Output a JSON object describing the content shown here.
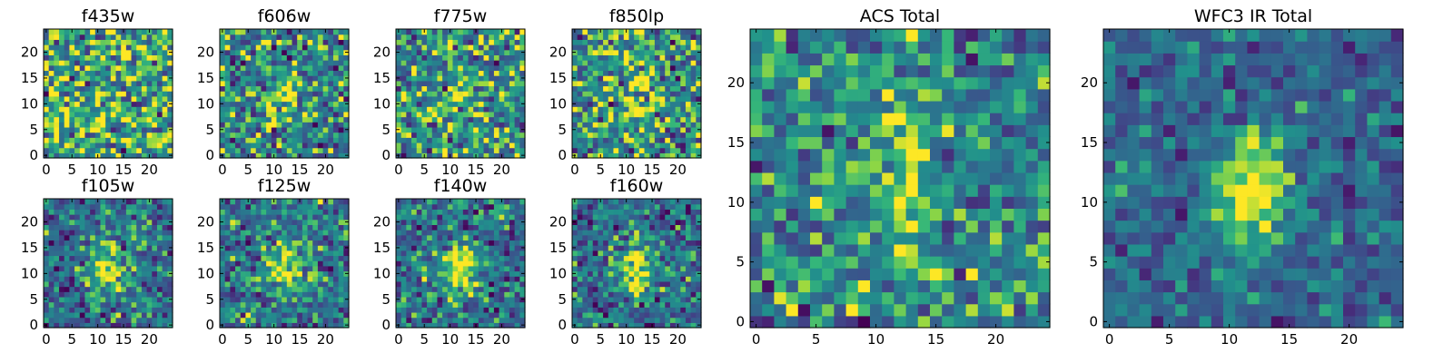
{
  "chart_data": {
    "type": "heatmap",
    "colormap": "viridis",
    "grid": false,
    "pixels_per_side": 25,
    "panels": [
      {
        "title": "f435w",
        "xticks": [
          0,
          5,
          10,
          15,
          20
        ],
        "yticks": [
          0,
          5,
          10,
          15,
          20
        ],
        "xlim": [
          -0.5,
          24.5
        ],
        "ylim": [
          -0.5,
          24.5
        ],
        "source": {
          "cx": 12,
          "cy": 11,
          "sx": 2.5,
          "sy": 4,
          "amp": 0.0
        },
        "noise": 0.55,
        "base": 0.68,
        "seed": 11
      },
      {
        "title": "f606w",
        "xticks": [
          0,
          5,
          10,
          15,
          20
        ],
        "yticks": [
          0,
          5,
          10,
          15,
          20
        ],
        "xlim": [
          -0.5,
          24.5
        ],
        "ylim": [
          -0.5,
          24.5
        ],
        "source": {
          "cx": 12,
          "cy": 11,
          "sx": 2,
          "sy": 3.5,
          "amp": 0.35
        },
        "noise": 0.5,
        "base": 0.55,
        "seed": 23
      },
      {
        "title": "f775w",
        "xticks": [
          0,
          5,
          10,
          15,
          20
        ],
        "yticks": [
          0,
          5,
          10,
          15,
          20
        ],
        "xlim": [
          -0.5,
          24.5
        ],
        "ylim": [
          -0.5,
          24.5
        ],
        "source": {
          "cx": 12,
          "cy": 12,
          "sx": 2.5,
          "sy": 4,
          "amp": 0.15
        },
        "noise": 0.5,
        "base": 0.6,
        "seed": 37
      },
      {
        "title": "f850lp",
        "xticks": [
          0,
          5,
          10,
          15,
          20
        ],
        "yticks": [
          0,
          5,
          10,
          15,
          20
        ],
        "xlim": [
          -0.5,
          24.5
        ],
        "ylim": [
          -0.5,
          24.5
        ],
        "source": {
          "cx": 12,
          "cy": 11,
          "sx": 2,
          "sy": 4,
          "amp": 0.3
        },
        "noise": 0.5,
        "base": 0.6,
        "seed": 41
      },
      {
        "title": "f105w",
        "xticks": [
          0,
          5,
          10,
          15,
          20
        ],
        "yticks": [
          0,
          5,
          10,
          15,
          20
        ],
        "xlim": [
          -0.5,
          24.5
        ],
        "ylim": [
          -0.5,
          24.5
        ],
        "source": {
          "cx": 12,
          "cy": 11,
          "sx": 2.5,
          "sy": 3.5,
          "amp": 0.55
        },
        "noise": 0.4,
        "base": 0.45,
        "seed": 53
      },
      {
        "title": "f125w",
        "xticks": [
          0,
          5,
          10,
          15,
          20
        ],
        "yticks": [
          0,
          5,
          10,
          15,
          20
        ],
        "xlim": [
          -0.5,
          24.5
        ],
        "ylim": [
          -0.5,
          24.5
        ],
        "source": {
          "cx": 12,
          "cy": 12,
          "sx": 2.5,
          "sy": 3.5,
          "amp": 0.5
        },
        "noise": 0.4,
        "base": 0.5,
        "seed": 67
      },
      {
        "title": "f140w",
        "xticks": [
          0,
          5,
          10,
          15,
          20
        ],
        "yticks": [
          0,
          5,
          10,
          15,
          20
        ],
        "xlim": [
          -0.5,
          24.5
        ],
        "ylim": [
          -0.5,
          24.5
        ],
        "source": {
          "cx": 12,
          "cy": 11,
          "sx": 2.5,
          "sy": 4,
          "amp": 0.55
        },
        "noise": 0.4,
        "base": 0.45,
        "seed": 71
      },
      {
        "title": "f160w",
        "xticks": [
          0,
          5,
          10,
          15,
          20
        ],
        "yticks": [
          0,
          5,
          10,
          15,
          20
        ],
        "xlim": [
          -0.5,
          24.5
        ],
        "ylim": [
          -0.5,
          24.5
        ],
        "source": {
          "cx": 12,
          "cy": 11,
          "sx": 2.5,
          "sy": 4,
          "amp": 0.5
        },
        "noise": 0.4,
        "base": 0.45,
        "seed": 83
      },
      {
        "title": "ACS Total",
        "xticks": [
          0,
          5,
          10,
          15,
          20
        ],
        "yticks": [
          0,
          5,
          10,
          15,
          20
        ],
        "xlim": [
          -0.5,
          24.5
        ],
        "ylim": [
          -0.5,
          24.5
        ],
        "source": {
          "cx": 12,
          "cy": 11,
          "sx": 1.2,
          "sy": 4,
          "amp": 0.45
        },
        "noise": 0.4,
        "base": 0.55,
        "seed": 97
      },
      {
        "title": "WFC3 IR Total",
        "xticks": [
          0,
          5,
          10,
          15,
          20
        ],
        "yticks": [
          0,
          5,
          10,
          15,
          20
        ],
        "xlim": [
          -0.5,
          24.5
        ],
        "ylim": [
          -0.5,
          24.5
        ],
        "source": {
          "cx": 12,
          "cy": 11,
          "sx": 2.2,
          "sy": 3.5,
          "amp": 0.65
        },
        "noise": 0.28,
        "base": 0.42,
        "seed": 101
      }
    ]
  }
}
